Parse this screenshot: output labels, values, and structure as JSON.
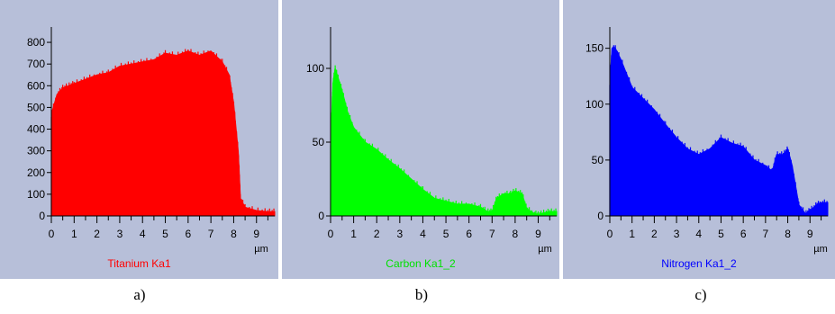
{
  "chart_data": [
    {
      "type": "area",
      "panel_label": "a)",
      "series_label": "Titanium Ka1",
      "color": "#ff0000",
      "xunit": "µm",
      "xticks": [
        0,
        1,
        2,
        3,
        4,
        5,
        6,
        7,
        8,
        9
      ],
      "yticks": [
        0,
        100,
        200,
        300,
        400,
        500,
        600,
        700,
        800
      ],
      "xlim": [
        0,
        9.8
      ],
      "ylim": [
        0,
        850
      ],
      "x": [
        0,
        0.25,
        0.5,
        0.75,
        1,
        1.5,
        2,
        2.5,
        3,
        3.5,
        4,
        4.5,
        5,
        5.5,
        6,
        6.5,
        7,
        7.5,
        7.8,
        8,
        8.2,
        8.3,
        8.5,
        9,
        9.5,
        9.8
      ],
      "y": [
        470,
        560,
        590,
        600,
        610,
        630,
        650,
        660,
        690,
        700,
        710,
        720,
        750,
        740,
        760,
        740,
        760,
        710,
        650,
        520,
        300,
        80,
        40,
        25,
        20,
        20
      ]
    },
    {
      "type": "area",
      "panel_label": "b)",
      "series_label": "Carbon Ka1_2",
      "color": "#00ff00",
      "xunit": "µm",
      "xticks": [
        0,
        1,
        2,
        3,
        4,
        5,
        6,
        7,
        8,
        9
      ],
      "yticks": [
        0,
        50,
        100
      ],
      "xlim": [
        0,
        9.8
      ],
      "ylim": [
        0,
        125
      ],
      "x": [
        0,
        0.1,
        0.2,
        0.3,
        0.5,
        0.75,
        1,
        1.5,
        2,
        2.5,
        3,
        3.5,
        4,
        4.5,
        5,
        5.5,
        6,
        6.5,
        6.8,
        7,
        7.2,
        7.5,
        7.8,
        8,
        8.3,
        8.5,
        8.8,
        9,
        9.2,
        9.5,
        9.8
      ],
      "y": [
        50,
        90,
        100,
        95,
        85,
        70,
        60,
        50,
        45,
        38,
        32,
        25,
        18,
        12,
        10,
        8,
        8,
        6,
        3,
        3,
        12,
        15,
        15,
        17,
        15,
        5,
        2,
        1,
        2,
        3,
        3
      ]
    },
    {
      "type": "area",
      "panel_label": "c)",
      "series_label": "Nitrogen Ka1_2",
      "color": "#0000ff",
      "xunit": "µm",
      "xticks": [
        0,
        1,
        2,
        3,
        4,
        5,
        6,
        7,
        8,
        9
      ],
      "yticks": [
        0,
        50,
        100,
        150
      ],
      "xlim": [
        0,
        9.8
      ],
      "ylim": [
        0,
        165
      ],
      "x": [
        0,
        0.1,
        0.25,
        0.5,
        1,
        1.5,
        2,
        2.5,
        3,
        3.5,
        4,
        4.5,
        5,
        5.5,
        6,
        6.5,
        7,
        7.3,
        7.5,
        7.8,
        8,
        8.2,
        8.5,
        8.8,
        9,
        9.3,
        9.5,
        9.8
      ],
      "y": [
        120,
        150,
        150,
        140,
        115,
        105,
        95,
        82,
        70,
        60,
        55,
        60,
        70,
        65,
        62,
        50,
        45,
        40,
        55,
        55,
        60,
        45,
        10,
        2,
        5,
        10,
        12,
        12
      ]
    }
  ]
}
